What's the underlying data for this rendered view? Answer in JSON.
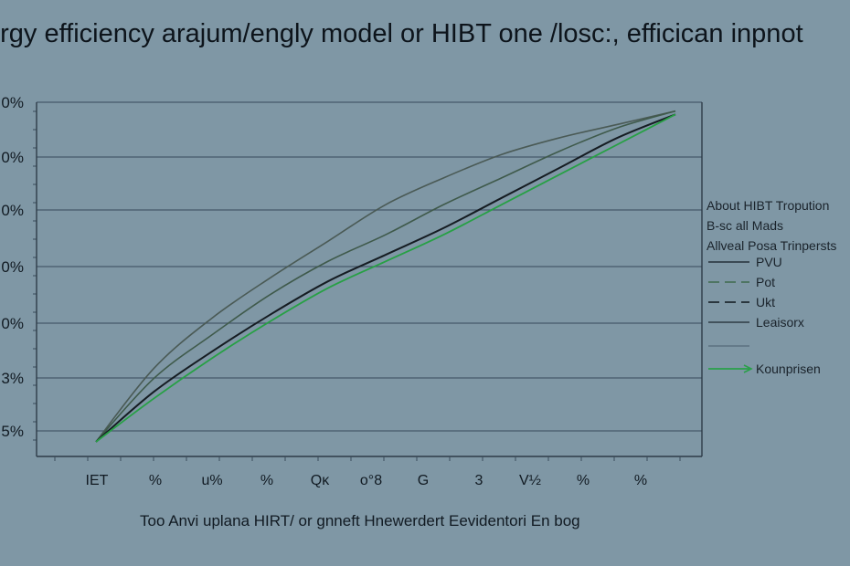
{
  "chart_data": {
    "type": "line",
    "title": "ergy efficiency arajum/engly model or HIBT one /losc:, efficican inpnot",
    "xlabel": "Too Anvi uplana HIRT/ or gnneft Hnewerdert Eevidentori En bog",
    "ylabel": "",
    "y_tick_labels": [
      "0%",
      "0%",
      "0%",
      "0%",
      "0%",
      "3%",
      "5%"
    ],
    "x_tick_labels": [
      "IET",
      "%",
      "u%",
      "%",
      "Qκ",
      "o°8",
      "G",
      "3",
      "V½",
      "%",
      "%"
    ],
    "x": [
      0,
      1,
      2,
      3,
      4,
      5,
      6,
      7,
      8,
      9,
      10
    ],
    "ylim": [
      0,
      100
    ],
    "grid": true,
    "series": [
      {
        "name": "PVU",
        "color": "#4a5a55",
        "values": [
          0,
          22,
          37,
          49,
          60,
          71,
          79,
          86,
          91,
          95,
          99
        ]
      },
      {
        "name": "Pot",
        "color": "#3f5a4b",
        "values": [
          0,
          19,
          32,
          44,
          54,
          62,
          71,
          79,
          87,
          94,
          99
        ]
      },
      {
        "name": "Ukt",
        "color": "#151c22",
        "values": [
          0,
          15,
          27,
          38,
          48,
          56,
          64,
          73,
          82,
          91,
          98
        ]
      },
      {
        "name": "Leaisorx",
        "color": "#27a045",
        "values": [
          0,
          13,
          25,
          36,
          46,
          54,
          62,
          71,
          80,
          89,
          98
        ]
      }
    ],
    "legend": {
      "placement": "right",
      "header": [
        "About HIBT Tropution",
        "B-sc all Mads",
        "Allveal  Posa Trinpersts"
      ],
      "entries": [
        {
          "label": "PVU",
          "color": "#25313a",
          "style": "solid"
        },
        {
          "label": "Pot",
          "color": "#3f6a4d",
          "style": "dashed"
        },
        {
          "label": "Ukt",
          "color": "#0f161c",
          "style": "dashed"
        },
        {
          "label": "Leaisorx",
          "color": "#2e3b45",
          "style": "solid"
        },
        {
          "label": "",
          "color": "#5c7080",
          "style": "solid"
        },
        {
          "label": "Kounprisen",
          "color": "#2aa04a",
          "style": "arrow"
        }
      ]
    }
  }
}
